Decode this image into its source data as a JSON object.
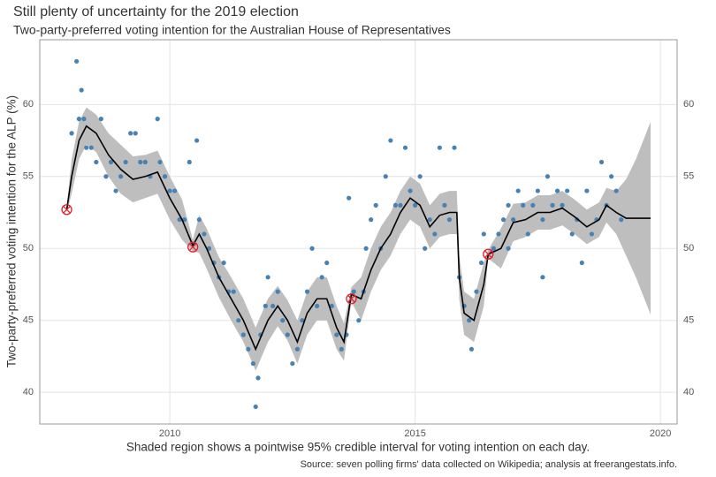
{
  "chart_data": {
    "type": "line",
    "title": "Still plenty of uncertainty for the 2019 election",
    "subtitle": "Two-party-preferred voting intention for the Australian House of Representatives",
    "y_label": "Two-party-preferred voting intention for the ALP (%)",
    "x_label": "Shaded region shows a pointwise 95% credible interval for voting intention on each day.",
    "caption": "Source: seven polling firms' data collected on Wikipedia; analysis at freerangestats.info.",
    "xlim": [
      2007.35,
      2020.34
    ],
    "ylim": [
      37.8,
      64.5
    ],
    "xticks": [
      2010,
      2015,
      2020
    ],
    "yticks": [
      40,
      45,
      50,
      55,
      60
    ],
    "grid": true,
    "band": {
      "color": "#bebebe",
      "x": [
        2007.9,
        2008.0,
        2008.15,
        2008.3,
        2008.5,
        2008.75,
        2009.0,
        2009.25,
        2009.5,
        2009.75,
        2010.0,
        2010.25,
        2010.47,
        2010.6,
        2010.75,
        2011.0,
        2011.25,
        2011.5,
        2011.75,
        2012.0,
        2012.2,
        2012.4,
        2012.6,
        2012.8,
        2013.0,
        2013.2,
        2013.4,
        2013.55,
        2013.7,
        2013.9,
        2014.1,
        2014.3,
        2014.5,
        2014.7,
        2014.9,
        2015.1,
        2015.3,
        2015.5,
        2015.7,
        2015.85,
        2015.9,
        2016.0,
        2016.2,
        2016.4,
        2016.49,
        2016.75,
        2017.0,
        2017.25,
        2017.5,
        2017.75,
        2018.0,
        2018.25,
        2018.5,
        2018.75,
        2018.9,
        2019.1,
        2019.3,
        2019.5,
        2019.8
      ],
      "lower": [
        52.5,
        53.8,
        56.2,
        57.2,
        56.7,
        55.0,
        53.8,
        53.2,
        53.5,
        53.8,
        52.0,
        50.6,
        49.8,
        49.7,
        48.6,
        46.6,
        45.0,
        43.5,
        41.5,
        43.5,
        44.6,
        43.6,
        42.0,
        44.0,
        45.0,
        45.0,
        43.0,
        42.2,
        46.3,
        45.0,
        47.0,
        48.5,
        49.5,
        51.0,
        52.0,
        51.5,
        50.0,
        50.8,
        51.0,
        51.0,
        46.5,
        44.0,
        43.5,
        46.0,
        49.3,
        48.6,
        50.5,
        50.8,
        51.3,
        51.3,
        51.6,
        51.0,
        50.3,
        50.8,
        51.8,
        51.0,
        49.5,
        48.0,
        45.4
      ],
      "upper": [
        52.9,
        56.2,
        58.8,
        59.8,
        59.3,
        58.0,
        57.2,
        56.4,
        56.5,
        56.8,
        55.0,
        53.4,
        50.6,
        52.3,
        51.4,
        49.4,
        48.0,
        46.5,
        44.5,
        46.5,
        47.4,
        46.4,
        45.0,
        47.0,
        48.0,
        48.0,
        46.0,
        44.8,
        47.3,
        48.0,
        50.0,
        51.5,
        52.5,
        54.0,
        55.0,
        54.5,
        53.0,
        53.8,
        54.0,
        54.0,
        49.5,
        47.0,
        46.5,
        49.0,
        49.9,
        51.4,
        53.1,
        53.2,
        53.7,
        53.7,
        54.0,
        53.4,
        52.7,
        53.2,
        54.2,
        54.0,
        54.8,
        56.2,
        58.8
      ]
    },
    "line": {
      "color": "#000000",
      "x": [
        2007.9,
        2008.0,
        2008.15,
        2008.3,
        2008.5,
        2008.75,
        2009.0,
        2009.25,
        2009.5,
        2009.75,
        2010.0,
        2010.25,
        2010.47,
        2010.6,
        2010.75,
        2011.0,
        2011.25,
        2011.5,
        2011.75,
        2012.0,
        2012.2,
        2012.4,
        2012.6,
        2012.8,
        2013.0,
        2013.2,
        2013.4,
        2013.55,
        2013.7,
        2013.9,
        2014.1,
        2014.3,
        2014.5,
        2014.7,
        2014.9,
        2015.1,
        2015.3,
        2015.5,
        2015.7,
        2015.85,
        2015.9,
        2016.0,
        2016.2,
        2016.4,
        2016.49,
        2016.75,
        2017.0,
        2017.25,
        2017.5,
        2017.75,
        2018.0,
        2018.25,
        2018.5,
        2018.75,
        2018.9,
        2019.1,
        2019.3,
        2019.5,
        2019.8
      ],
      "values": [
        52.7,
        55.0,
        57.5,
        58.5,
        58.0,
        56.5,
        55.5,
        54.8,
        55.0,
        55.3,
        53.5,
        52.0,
        50.2,
        51.0,
        50.0,
        48.0,
        46.5,
        45.0,
        43.0,
        45.0,
        46.0,
        45.0,
        43.5,
        45.5,
        46.5,
        46.5,
        44.5,
        43.5,
        46.8,
        46.5,
        48.5,
        50.0,
        51.0,
        52.5,
        53.5,
        53.0,
        51.5,
        52.3,
        52.5,
        52.5,
        48.0,
        45.5,
        45.0,
        47.5,
        49.6,
        50.0,
        51.8,
        52.0,
        52.5,
        52.5,
        52.8,
        52.2,
        51.5,
        52.0,
        53.0,
        52.5,
        52.1,
        52.1,
        52.1
      ]
    },
    "points": {
      "color": "#4682b4",
      "x": [
        2008.0,
        2008.1,
        2008.2,
        2008.15,
        2008.25,
        2008.3,
        2008.4,
        2008.5,
        2008.6,
        2008.7,
        2008.8,
        2008.9,
        2009.0,
        2009.1,
        2009.2,
        2009.3,
        2009.4,
        2009.5,
        2009.6,
        2009.75,
        2009.8,
        2009.9,
        2010.0,
        2010.1,
        2010.2,
        2010.3,
        2010.4,
        2010.55,
        2010.6,
        2010.7,
        2010.8,
        2010.9,
        2011.0,
        2011.1,
        2011.2,
        2011.3,
        2011.4,
        2011.5,
        2011.6,
        2011.7,
        2011.8,
        2011.75,
        2011.85,
        2011.95,
        2012.0,
        2012.1,
        2012.2,
        2012.3,
        2012.4,
        2012.5,
        2012.6,
        2012.7,
        2012.8,
        2012.9,
        2013.0,
        2013.1,
        2013.2,
        2013.3,
        2013.4,
        2013.5,
        2013.6,
        2013.65,
        2013.75,
        2013.85,
        2013.95,
        2014.0,
        2014.1,
        2014.2,
        2014.3,
        2014.4,
        2014.5,
        2014.6,
        2014.7,
        2014.8,
        2014.9,
        2015.0,
        2015.1,
        2015.2,
        2015.3,
        2015.4,
        2015.5,
        2015.6,
        2015.7,
        2015.8,
        2015.9,
        2016.0,
        2016.1,
        2016.15,
        2016.25,
        2016.35,
        2016.4,
        2016.6,
        2016.7,
        2016.8,
        2016.9,
        2017.0,
        2017.1,
        2017.2,
        2017.3,
        2017.4,
        2017.5,
        2017.6,
        2017.7,
        2017.8,
        2017.9,
        2018.0,
        2018.1,
        2018.2,
        2018.3,
        2018.4,
        2018.5,
        2018.6,
        2018.7,
        2018.8,
        2018.9,
        2019.0,
        2019.1,
        2019.2,
        2016.9,
        2017.6
      ],
      "values": [
        58,
        63,
        61,
        59,
        59,
        57,
        57,
        56,
        59,
        55,
        56,
        54,
        55,
        56,
        58,
        58,
        56,
        56,
        55,
        59,
        56,
        55,
        54,
        54,
        52,
        52,
        56,
        57.5,
        52,
        51,
        50,
        49,
        48,
        49,
        47,
        47,
        45,
        44,
        43,
        42,
        41,
        39,
        44,
        46,
        48,
        46,
        47,
        45,
        44,
        42,
        43,
        45,
        47,
        50,
        46,
        48,
        49,
        46,
        44,
        43,
        44,
        53.5,
        47,
        45,
        47,
        50,
        52,
        53,
        50,
        55,
        57.5,
        53,
        53,
        57,
        54,
        53,
        55,
        50,
        52,
        51,
        57,
        53,
        52,
        57,
        48,
        46,
        45,
        43,
        47,
        49,
        51,
        50,
        51,
        52,
        53,
        52,
        54,
        53,
        51,
        53,
        54,
        52,
        55,
        53,
        54,
        53,
        54,
        51,
        52,
        49,
        54,
        51,
        52,
        56,
        53,
        55,
        54,
        52,
        50,
        48
      ]
    },
    "elections": {
      "color": "#e0202a",
      "x": [
        2007.9,
        2010.47,
        2013.7,
        2016.49
      ],
      "values": [
        52.7,
        50.1,
        46.5,
        49.6
      ]
    }
  }
}
